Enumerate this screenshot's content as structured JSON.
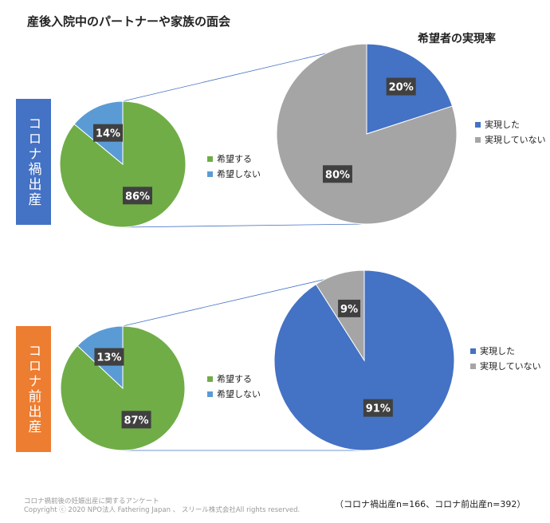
{
  "title": "産後入院中のパートナーや家族の面会",
  "subtitle": "希望者の実現率",
  "badges": [
    "コロナ禍出産",
    "コロナ前出産"
  ],
  "colors": {
    "green": "#70ad47",
    "lightblue": "#5b9bd5",
    "blue": "#4472c4",
    "gray": "#a5a5a5",
    "orange": "#ed7d31",
    "line": "#4472c4"
  },
  "legend_wish": [
    "希望する",
    "希望しない"
  ],
  "legend_real": [
    "実現した",
    "実現していない"
  ],
  "chart_data": [
    {
      "type": "pie",
      "group": "コロナ禍出産",
      "categories": [
        "希望する",
        "希望しない"
      ],
      "values": [
        86,
        14
      ],
      "labels": [
        "86%",
        "14%"
      ]
    },
    {
      "type": "pie",
      "group": "コロナ禍出産",
      "title": "希望者の実現率",
      "categories": [
        "実現した",
        "実現していない"
      ],
      "values": [
        20,
        80
      ],
      "labels": [
        "20%",
        "80%"
      ]
    },
    {
      "type": "pie",
      "group": "コロナ前出産",
      "categories": [
        "希望する",
        "希望しない"
      ],
      "values": [
        87,
        13
      ],
      "labels": [
        "87%",
        "13%"
      ]
    },
    {
      "type": "pie",
      "group": "コロナ前出産",
      "categories": [
        "実現した",
        "実現していない"
      ],
      "values": [
        91,
        9
      ],
      "labels": [
        "91%",
        "9%"
      ]
    }
  ],
  "footer": {
    "source": "コロナ禍前後の妊娠出産に関するアンケート",
    "copyright": "Copyright ⓒ 2020 NPO法人 Fathering Japan 、 スリール株式会社All rights reserved.",
    "sample": "（コロナ禍出産n=166、コロナ前出産n=392）"
  }
}
